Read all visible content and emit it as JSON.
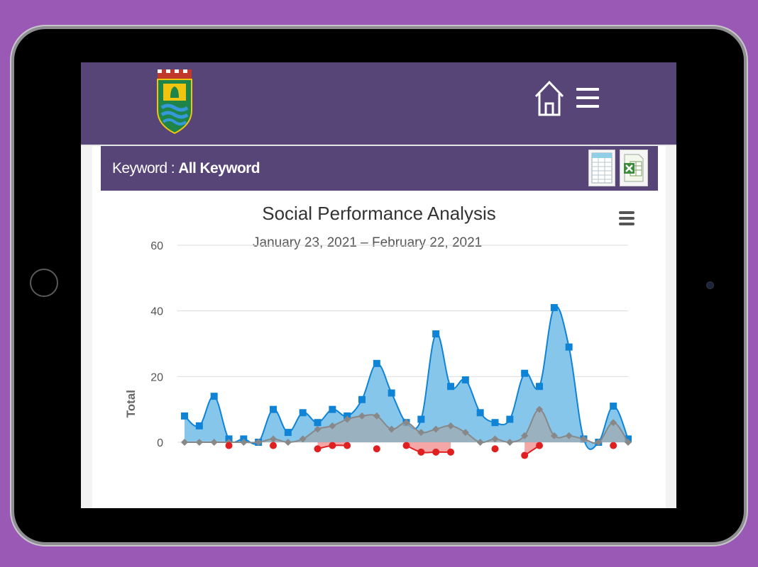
{
  "header": {
    "logo_icon": "city-emblem-logo",
    "home_icon": "home-icon",
    "menu_icon": "hamburger-menu-icon"
  },
  "keyword_bar": {
    "label": "Keyword : ",
    "value": "All Keyword",
    "export_buttons": [
      {
        "icon": "spreadsheet-icon"
      },
      {
        "icon": "excel-icon"
      }
    ]
  },
  "chart_data": {
    "type": "area",
    "title": "Social Performance Analysis",
    "subtitle": "January 23, 2021 – February 22, 2021",
    "ylabel": "Total",
    "ylim": [
      -5,
      60
    ],
    "yticks": [
      0,
      20,
      40,
      60
    ],
    "grid": true,
    "x": [
      1,
      2,
      3,
      4,
      5,
      6,
      7,
      8,
      9,
      10,
      11,
      12,
      13,
      14,
      15,
      16,
      17,
      18,
      19,
      20,
      21,
      22,
      23,
      24,
      25,
      26,
      27,
      28,
      29,
      30,
      31
    ],
    "series": [
      {
        "color": "#0f83d6",
        "fill": "#7fc3ea",
        "marker": "square",
        "values": [
          8,
          5,
          14,
          1,
          1,
          0,
          10,
          3,
          9,
          6,
          10,
          8,
          13,
          24,
          15,
          6,
          7,
          33,
          17,
          19,
          9,
          6,
          7,
          21,
          17,
          41,
          29,
          1,
          0,
          11,
          1
        ]
      },
      {
        "color": "#888888",
        "fill": "#a0aab2",
        "marker": "diamond",
        "values": [
          0,
          0,
          0,
          0,
          0,
          0,
          1,
          0,
          1,
          4,
          5,
          7,
          8,
          8,
          4,
          6,
          3,
          4,
          5,
          3,
          0,
          1,
          0,
          2,
          10,
          2,
          2,
          1,
          0,
          6,
          0
        ]
      },
      {
        "color": "#e02020",
        "fill": "#f08a8a",
        "marker": "circle",
        "values": [
          null,
          null,
          null,
          -1,
          null,
          null,
          -1,
          null,
          null,
          -2,
          -1,
          -1,
          null,
          -2,
          null,
          -1,
          -3,
          -3,
          -3,
          null,
          null,
          -2,
          null,
          -4,
          -1,
          null,
          null,
          null,
          null,
          -1,
          null
        ]
      }
    ]
  }
}
